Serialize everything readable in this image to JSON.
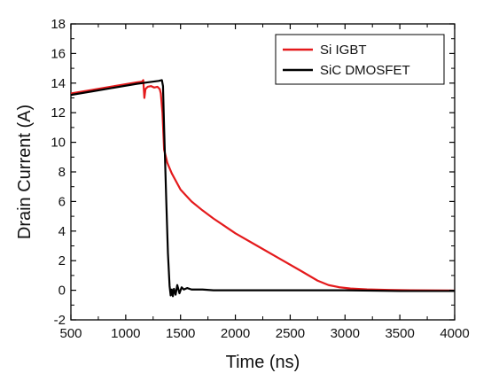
{
  "chart_data": {
    "type": "line",
    "title": "",
    "xlabel": "Time (ns)",
    "ylabel": "Drain Current (A)",
    "xlim": [
      500,
      4000
    ],
    "ylim": [
      -2,
      18
    ],
    "xticks": [
      500,
      1000,
      1500,
      2000,
      2500,
      3000,
      3500,
      4000
    ],
    "yticks": [
      -2,
      0,
      2,
      4,
      6,
      8,
      10,
      12,
      14,
      16,
      18
    ],
    "grid": false,
    "legend_position": "top-right",
    "series": [
      {
        "name": "Si IGBT",
        "color": "#e41a1c",
        "x": [
          500,
          700,
          900,
          1100,
          1150,
          1160,
          1170,
          1180,
          1200,
          1230,
          1260,
          1290,
          1310,
          1320,
          1335,
          1350,
          1380,
          1420,
          1500,
          1600,
          1700,
          1800,
          1900,
          2000,
          2200,
          2400,
          2600,
          2750,
          2850,
          2950,
          3050,
          3200,
          3400,
          3600,
          4000
        ],
        "y": [
          13.3,
          13.55,
          13.8,
          14.05,
          14.1,
          14.2,
          13.0,
          13.6,
          13.75,
          13.8,
          13.7,
          13.75,
          13.6,
          13.3,
          12.0,
          9.5,
          8.6,
          7.9,
          6.8,
          6.0,
          5.4,
          4.85,
          4.35,
          3.85,
          3.0,
          2.15,
          1.3,
          0.65,
          0.35,
          0.2,
          0.12,
          0.06,
          0.02,
          0.0,
          -0.02
        ]
      },
      {
        "name": "SiC DMOSFET",
        "color": "#000000",
        "x": [
          500,
          700,
          900,
          1100,
          1200,
          1300,
          1330,
          1340,
          1350,
          1370,
          1385,
          1400,
          1410,
          1420,
          1430,
          1440,
          1455,
          1470,
          1490,
          1510,
          1530,
          1560,
          1600,
          1700,
          1800,
          2000,
          2500,
          3000,
          3500,
          4000
        ],
        "y": [
          13.2,
          13.45,
          13.7,
          13.95,
          14.05,
          14.15,
          14.2,
          13.8,
          11.0,
          6.0,
          2.5,
          0.3,
          -0.35,
          0.05,
          -0.4,
          0.1,
          -0.3,
          0.35,
          -0.2,
          0.2,
          0.05,
          0.15,
          0.05,
          0.05,
          0.0,
          0.0,
          0.0,
          0.0,
          -0.05,
          -0.05
        ]
      }
    ]
  }
}
